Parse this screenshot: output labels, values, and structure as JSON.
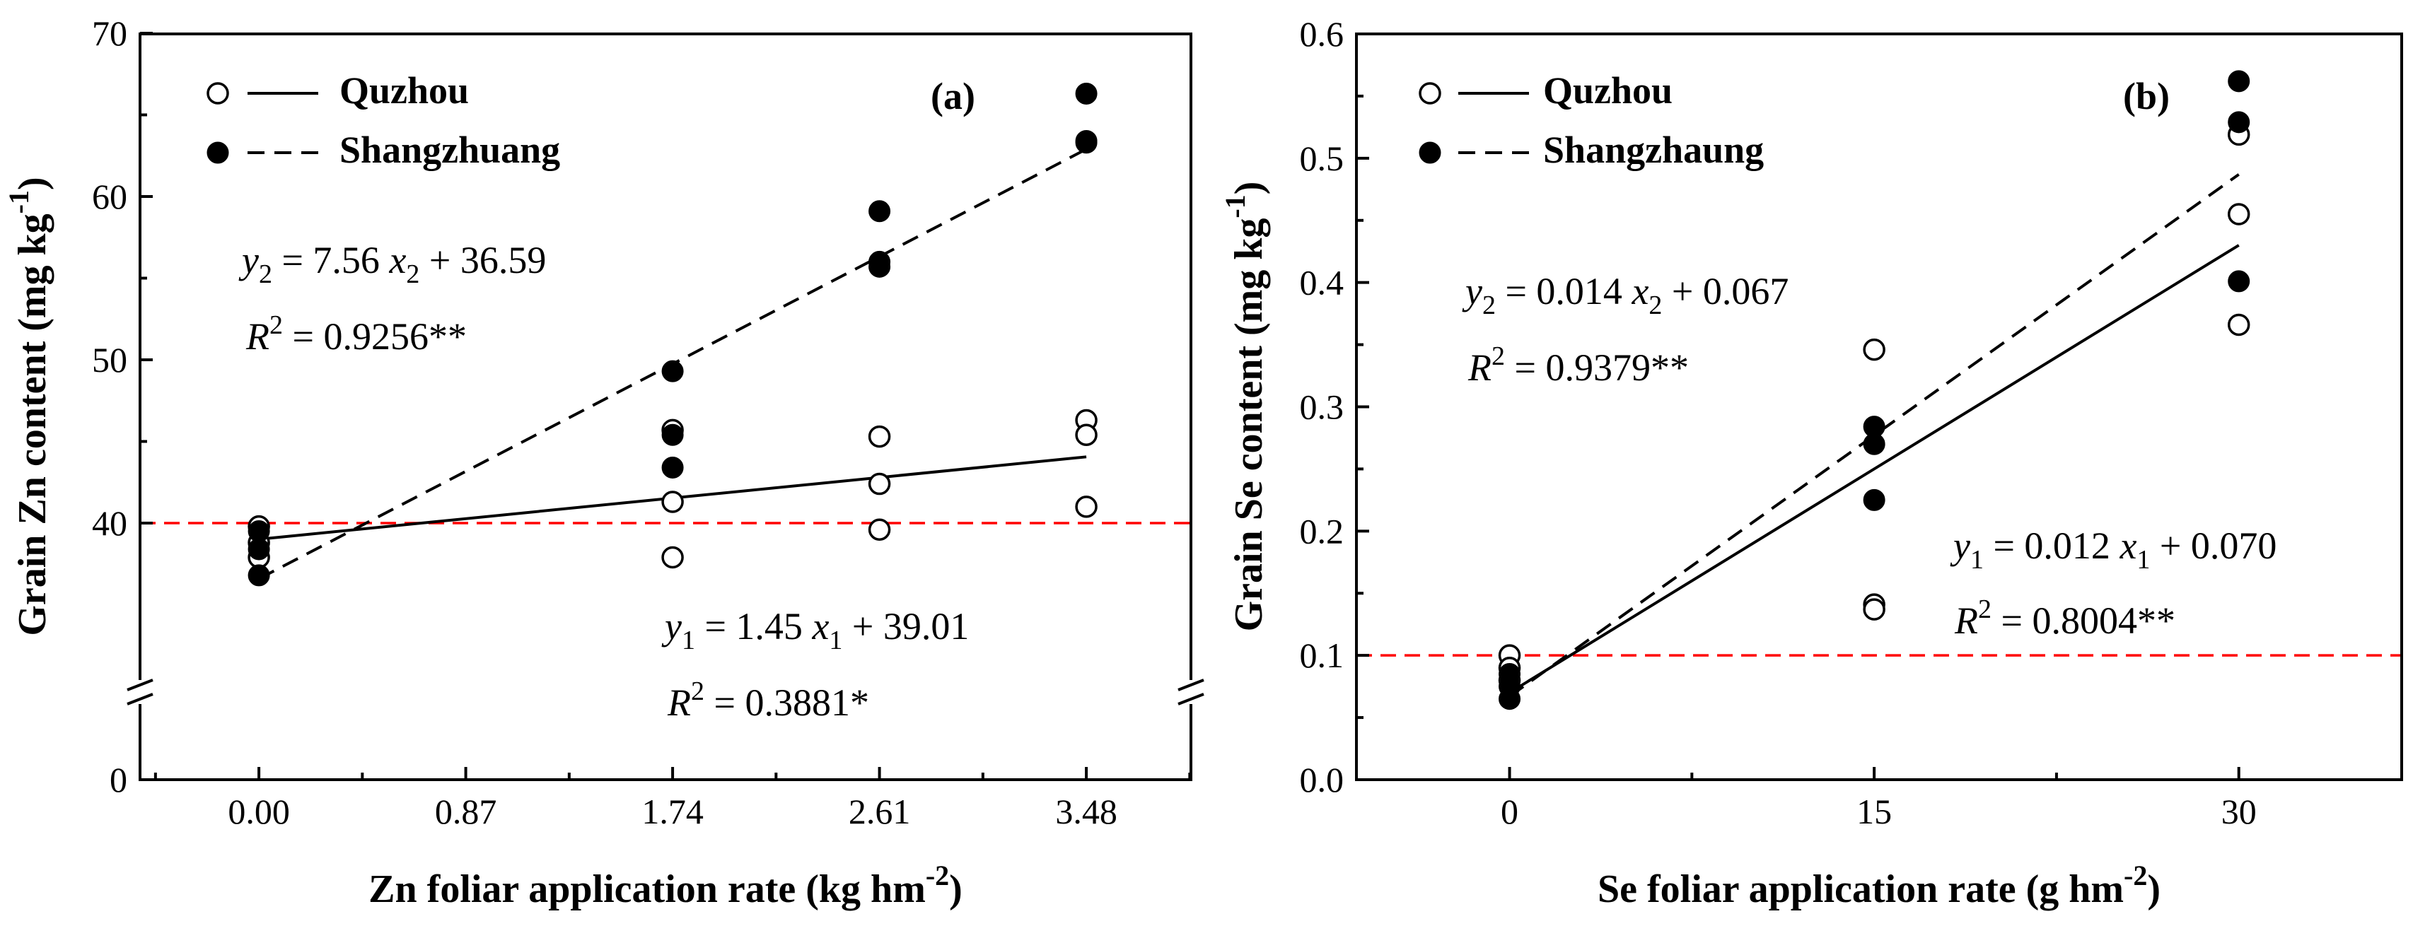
{
  "chart_data": [
    {
      "type": "scatter",
      "id": "a",
      "panel_label": "(a)",
      "xlabel_main": "Zn foliar application rate (kg hm",
      "xlabel_sup": "-2",
      "xlabel_end": ")",
      "ylabel_main": "Grain Zn content (mg kg",
      "ylabel_sup": "-1",
      "ylabel_end": ")",
      "xlim": [
        -0.5,
        3.92
      ],
      "x_ticks": [
        0.0,
        0.87,
        1.74,
        2.61,
        3.48
      ],
      "x_tick_labels": [
        "0.00",
        "0.87",
        "1.74",
        "2.61",
        "3.48"
      ],
      "y_ticks_labels": [
        {
          "value": 0,
          "label": "0"
        },
        {
          "value": 40,
          "label": "40"
        },
        {
          "value": 50,
          "label": "50"
        },
        {
          "value": 60,
          "label": "60"
        },
        {
          "value": 70,
          "label": "70"
        }
      ],
      "y_axis_break": "between 0 and about 27",
      "threshold_value": 40,
      "threshold_color": "#ff0000",
      "legend": [
        {
          "name": "Quzhou",
          "marker": "open-circle",
          "line": "solid"
        },
        {
          "name": "Shangzhuang",
          "marker": "filled-circle",
          "line": "dashed"
        }
      ],
      "series": [
        {
          "name": "Quzhou",
          "marker": "open-circle",
          "points": [
            [
              0.0,
              39.8
            ],
            [
              0.0,
              38.8
            ],
            [
              0.0,
              37.9
            ],
            [
              1.74,
              45.7
            ],
            [
              1.74,
              41.3
            ],
            [
              1.74,
              37.9
            ],
            [
              2.61,
              45.3
            ],
            [
              2.61,
              42.4
            ],
            [
              2.61,
              39.6
            ],
            [
              3.48,
              46.3
            ],
            [
              3.48,
              45.4
            ],
            [
              3.48,
              41.0
            ]
          ],
          "fit": {
            "slope": 1.45,
            "intercept": 39.01,
            "style": "solid",
            "x_range": [
              0.0,
              3.48
            ]
          }
        },
        {
          "name": "Shangzhuang",
          "marker": "filled-circle",
          "points": [
            [
              0.0,
              39.5
            ],
            [
              0.0,
              38.4
            ],
            [
              0.0,
              36.8
            ],
            [
              1.74,
              49.3
            ],
            [
              1.74,
              45.4
            ],
            [
              1.74,
              43.4
            ],
            [
              2.61,
              59.1
            ],
            [
              2.61,
              56.0
            ],
            [
              2.61,
              55.7
            ],
            [
              3.48,
              66.3
            ],
            [
              3.48,
              63.4
            ],
            [
              3.48,
              63.3
            ]
          ],
          "fit": {
            "slope": 7.56,
            "intercept": 36.59,
            "style": "dashed",
            "x_range": [
              0.0,
              3.48
            ]
          }
        }
      ],
      "annotations": {
        "eq2": {
          "y": "y",
          "sub": "2",
          "eq": " = 7.56 ",
          "x": "x",
          "xsub": "2",
          "rest": " + 36.59",
          "r": "R",
          "rsup": "2",
          "rtext": " = 0.9256**"
        },
        "eq1": {
          "y": "y",
          "sub": "1",
          "eq": " = 1.45 ",
          "x": "x",
          "xsub": "1",
          "rest": " + 39.01",
          "r": "R",
          "rsup": "2",
          "rtext": " = 0.3881*"
        }
      }
    },
    {
      "type": "scatter",
      "id": "b",
      "panel_label": "(b)",
      "xlabel_main": "Se foliar application rate (g hm",
      "xlabel_sup": "-2",
      "xlabel_end": ")",
      "ylabel_main": "Grain Se content (mg kg",
      "ylabel_sup": "-1",
      "ylabel_end": ")",
      "xlim": [
        -6.3,
        36.7
      ],
      "ylim": [
        0,
        0.6
      ],
      "x_ticks": [
        0,
        15,
        30
      ],
      "x_tick_labels": [
        "0",
        "15",
        "30"
      ],
      "y_ticks": [
        0.0,
        0.1,
        0.2,
        0.3,
        0.4,
        0.5,
        0.6
      ],
      "y_tick_labels": [
        "0.0",
        "0.1",
        "0.2",
        "0.3",
        "0.4",
        "0.5",
        "0.6"
      ],
      "threshold_value": 0.1,
      "threshold_color": "#ff0000",
      "legend": [
        {
          "name": "Quzhou",
          "marker": "open-circle",
          "line": "solid"
        },
        {
          "name": "Shangzhaung",
          "marker": "filled-circle",
          "line": "dashed"
        }
      ],
      "series": [
        {
          "name": "Quzhou",
          "marker": "open-circle",
          "points": [
            [
              0,
              0.1
            ],
            [
              0,
              0.09
            ],
            [
              0,
              0.08
            ],
            [
              15,
              0.346
            ],
            [
              15,
              0.141
            ],
            [
              15,
              0.137
            ],
            [
              30,
              0.519
            ],
            [
              30,
              0.455
            ],
            [
              30,
              0.366
            ]
          ],
          "fit": {
            "slope": 0.012,
            "intercept": 0.07,
            "style": "solid",
            "x_range": [
              0,
              30
            ]
          }
        },
        {
          "name": "Shangzhaung",
          "marker": "filled-circle",
          "points": [
            [
              0,
              0.085
            ],
            [
              0,
              0.075
            ],
            [
              0,
              0.065
            ],
            [
              15,
              0.284
            ],
            [
              15,
              0.27
            ],
            [
              15,
              0.225
            ],
            [
              30,
              0.562
            ],
            [
              30,
              0.529
            ],
            [
              30,
              0.401
            ]
          ],
          "fit": {
            "slope": 0.014,
            "intercept": 0.067,
            "style": "dashed",
            "x_range": [
              0,
              30
            ]
          }
        }
      ],
      "annotations": {
        "eq2": {
          "y": "y",
          "sub": "2",
          "eq": " = 0.014 ",
          "x": "x",
          "xsub": "2",
          "rest": " + 0.067",
          "r": "R",
          "rsup": "2",
          "rtext": " = 0.9379**"
        },
        "eq1": {
          "y": "y",
          "sub": "1",
          "eq": " = 0.012 ",
          "x": "x",
          "xsub": "1",
          "rest": " + 0.070",
          "r": "R",
          "rsup": "2",
          "rtext": " = 0.8004**"
        }
      }
    }
  ]
}
